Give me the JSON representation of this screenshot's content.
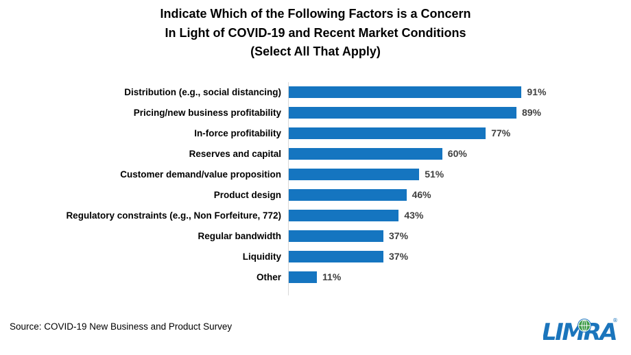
{
  "title": {
    "lines": [
      "Indicate Which of the Following Factors is a Concern",
      "In Light of COVID-19 and Recent Market Conditions",
      "(Select All That Apply)"
    ]
  },
  "chart_data": {
    "type": "bar",
    "orientation": "horizontal",
    "title": "Indicate Which of the Following Factors is a Concern In Light of COVID-19 and Recent Market Conditions (Select All That Apply)",
    "categories": [
      "Distribution (e.g., social distancing)",
      "Pricing/new business profitability",
      "In-force profitability",
      "Reserves and capital",
      "Customer demand/value proposition",
      "Product design",
      "Regulatory constraints (e.g., Non Forfeiture, 772)",
      "Regular bandwidth",
      "Liquidity",
      "Other"
    ],
    "values": [
      91,
      89,
      77,
      60,
      51,
      46,
      43,
      37,
      37,
      11
    ],
    "value_suffix": "%",
    "xlabel": "",
    "ylabel": "",
    "xlim": [
      0,
      100
    ],
    "grid": false,
    "legend": false,
    "bar_color": "#1575C0",
    "axis_color": "#D8D8D8",
    "value_label_color": "#404040",
    "category_label_color": "#000000"
  },
  "footer": {
    "source": "Source: COVID-19 New Business and Product Survey"
  },
  "logo": {
    "text": "LIMRA",
    "registered_mark": "®",
    "color": "#1B75BC",
    "globe_color": "#3C9A46"
  }
}
